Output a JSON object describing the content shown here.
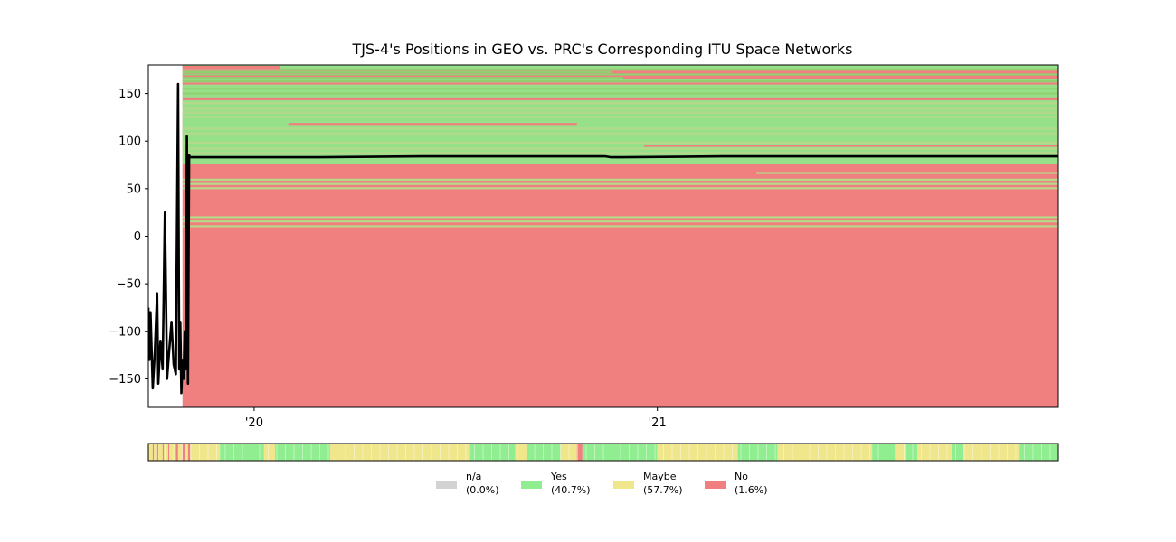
{
  "chart_data": {
    "type": "line",
    "title": "TJS-4's Positions in GEO vs. PRC's Corresponding ITU Space Networks",
    "xlabel": "",
    "ylabel": "",
    "x_range": [
      "2019-09-27",
      "2021-12-31"
    ],
    "x_ticks": [
      {
        "value": "2020-01-01",
        "label": "'20"
      },
      {
        "value": "2021-01-01",
        "label": "'21"
      }
    ],
    "ylim": [
      -180,
      180
    ],
    "y_ticks": [
      {
        "value": 150,
        "label": "150"
      },
      {
        "value": 100,
        "label": "100"
      },
      {
        "value": 50,
        "label": "50"
      },
      {
        "value": 0,
        "label": "0"
      },
      {
        "value": -50,
        "label": "−50"
      },
      {
        "value": -100,
        "label": "−100"
      },
      {
        "value": -150,
        "label": "−150"
      }
    ],
    "grid": false,
    "background": {
      "color": "#f08080",
      "start": "2019-10-28"
    },
    "band_start": "2019-10-28",
    "green_bands": [
      {
        "lo": 174,
        "hi": 180
      },
      {
        "lo": 146,
        "hi": 165
      },
      {
        "lo": 76,
        "hi": 143
      }
    ],
    "itu_network_lines": [
      {
        "lon": 178,
        "start": "2019-10-28",
        "end": "2020-01-25",
        "color": "#f08080"
      },
      {
        "lon": 176.5,
        "start": "2019-10-28",
        "end": "2020-01-25",
        "color": "#f08080"
      },
      {
        "lon": 175.5,
        "start": "2020-01-25",
        "end": "2021-12-31",
        "color": "#90d070"
      },
      {
        "lon": 172.5,
        "start": "2019-10-28",
        "end": "2020-11-20",
        "color": "#90d070"
      },
      {
        "lon": 172.5,
        "start": "2020-11-20",
        "end": "2021-12-31",
        "color": "#f08080"
      },
      {
        "lon": 170,
        "start": "2019-10-28",
        "end": "2021-12-31",
        "color": "#90d070"
      },
      {
        "lon": 166.5,
        "start": "2019-10-28",
        "end": "2020-12-01",
        "color": "#90d070"
      },
      {
        "lon": 163,
        "start": "2019-10-28",
        "end": "2021-12-31",
        "color": "#90d070"
      },
      {
        "lon": 160.5,
        "start": "2019-10-28",
        "end": "2021-12-31",
        "color": "#f08080"
      },
      {
        "lon": 155,
        "start": "2019-10-28",
        "end": "2021-12-31",
        "color": "#90d070"
      },
      {
        "lon": 150,
        "start": "2019-10-28",
        "end": "2021-12-31",
        "color": "#90d070"
      },
      {
        "lon": 140,
        "start": "2019-10-28",
        "end": "2021-12-31",
        "color": "#b5d98a"
      },
      {
        "lon": 134,
        "start": "2019-10-28",
        "end": "2021-12-31",
        "color": "#b5d98a"
      },
      {
        "lon": 130,
        "start": "2019-10-28",
        "end": "2021-12-31",
        "color": "#b5d98a"
      },
      {
        "lon": 125.5,
        "start": "2019-10-28",
        "end": "2021-12-31",
        "color": "#b5d98a"
      },
      {
        "lon": 118,
        "start": "2020-02-01",
        "end": "2020-10-20",
        "color": "#f08080"
      },
      {
        "lon": 113,
        "start": "2019-10-28",
        "end": "2021-12-31",
        "color": "#b5d98a"
      },
      {
        "lon": 108,
        "start": "2019-10-28",
        "end": "2021-12-31",
        "color": "#b5d98a"
      },
      {
        "lon": 98.5,
        "start": "2019-10-28",
        "end": "2021-12-31",
        "color": "#b5d98a"
      },
      {
        "lon": 95,
        "start": "2020-12-20",
        "end": "2021-12-31",
        "color": "#f08080"
      },
      {
        "lon": 92,
        "start": "2019-10-28",
        "end": "2021-12-31",
        "color": "#b5d98a"
      },
      {
        "lon": 87.5,
        "start": "2019-10-28",
        "end": "2021-12-31",
        "color": "#b5d98a"
      },
      {
        "lon": 66.5,
        "start": "2021-04-01",
        "end": "2021-12-31",
        "color": "#b5d98a"
      },
      {
        "lon": 59.5,
        "start": "2019-10-28",
        "end": "2021-12-31",
        "color": "#b5d98a"
      },
      {
        "lon": 55,
        "start": "2019-10-28",
        "end": "2021-12-31",
        "color": "#b5d98a"
      },
      {
        "lon": 50.5,
        "start": "2019-10-28",
        "end": "2021-12-31",
        "color": "#b5d98a"
      },
      {
        "lon": 20,
        "start": "2019-10-28",
        "end": "2021-12-31",
        "color": "#b5d98a"
      },
      {
        "lon": 15.5,
        "start": "2019-10-28",
        "end": "2021-12-31",
        "color": "#b5d98a"
      },
      {
        "lon": 10.5,
        "start": "2019-10-28",
        "end": "2021-12-31",
        "color": "#b5d98a"
      }
    ],
    "series": [
      {
        "color": "#000000",
        "x": [
          "2019-09-27",
          "2019-09-28",
          "2019-09-29",
          "2019-10-01",
          "2019-10-03",
          "2019-10-05",
          "2019-10-06",
          "2019-10-08",
          "2019-10-10",
          "2019-10-12",
          "2019-10-14",
          "2019-10-16",
          "2019-10-18",
          "2019-10-20",
          "2019-10-22",
          "2019-10-24",
          "2019-10-25",
          "2019-10-26",
          "2019-10-27",
          "2019-10-28",
          "2019-10-29",
          "2019-10-30",
          "2019-10-31",
          "2019-11-01",
          "2019-11-02",
          "2019-11-03",
          "2019-11-04",
          "2019-11-05",
          "2019-11-06",
          "2019-11-07",
          "2019-11-08",
          "2019-11-09",
          "2019-11-10",
          "2019-11-12",
          "2019-12-01",
          "2020-03-01",
          "2020-06-01",
          "2020-09-01",
          "2020-11-15",
          "2020-11-20",
          "2020-12-01",
          "2021-03-01",
          "2021-06-01",
          "2021-09-01",
          "2021-12-31"
        ],
        "y": [
          -75,
          -130,
          -80,
          -160,
          -120,
          -60,
          -155,
          -110,
          -140,
          25,
          -150,
          -120,
          -90,
          -135,
          -145,
          160,
          -140,
          -90,
          -165,
          -130,
          -150,
          -100,
          -140,
          105,
          -155,
          85,
          83,
          83,
          83,
          83,
          83,
          83,
          83,
          83,
          83,
          83,
          84,
          84,
          84,
          83,
          83,
          84,
          84,
          84,
          84
        ]
      }
    ],
    "status_strip": {
      "segments": [
        {
          "start": "2019-09-27",
          "end": "2019-10-01",
          "status": "Maybe"
        },
        {
          "start": "2019-10-01",
          "end": "2019-10-02",
          "status": "No"
        },
        {
          "start": "2019-10-02",
          "end": "2019-10-05",
          "status": "Maybe"
        },
        {
          "start": "2019-10-05",
          "end": "2019-10-06",
          "status": "No"
        },
        {
          "start": "2019-10-06",
          "end": "2019-10-10",
          "status": "Maybe"
        },
        {
          "start": "2019-10-10",
          "end": "2019-10-11",
          "status": "No"
        },
        {
          "start": "2019-10-11",
          "end": "2019-10-15",
          "status": "Maybe"
        },
        {
          "start": "2019-10-15",
          "end": "2019-10-16",
          "status": "No"
        },
        {
          "start": "2019-10-16",
          "end": "2019-10-22",
          "status": "Maybe"
        },
        {
          "start": "2019-10-22",
          "end": "2019-10-24",
          "status": "No"
        },
        {
          "start": "2019-10-24",
          "end": "2019-10-28",
          "status": "Maybe"
        },
        {
          "start": "2019-10-28",
          "end": "2019-10-30",
          "status": "No"
        },
        {
          "start": "2019-10-30",
          "end": "2019-11-02",
          "status": "Maybe"
        },
        {
          "start": "2019-11-02",
          "end": "2019-11-04",
          "status": "No"
        },
        {
          "start": "2019-11-04",
          "end": "2019-12-01",
          "status": "Maybe"
        },
        {
          "start": "2019-12-01",
          "end": "2020-01-10",
          "status": "Yes"
        },
        {
          "start": "2020-01-10",
          "end": "2020-01-20",
          "status": "Maybe"
        },
        {
          "start": "2020-01-20",
          "end": "2020-03-10",
          "status": "Yes"
        },
        {
          "start": "2020-03-10",
          "end": "2020-07-15",
          "status": "Maybe"
        },
        {
          "start": "2020-07-15",
          "end": "2020-08-25",
          "status": "Yes"
        },
        {
          "start": "2020-08-25",
          "end": "2020-09-05",
          "status": "Maybe"
        },
        {
          "start": "2020-09-05",
          "end": "2020-10-05",
          "status": "Yes"
        },
        {
          "start": "2020-10-05",
          "end": "2020-10-20",
          "status": "Maybe"
        },
        {
          "start": "2020-10-20",
          "end": "2020-10-25",
          "status": "No"
        },
        {
          "start": "2020-10-25",
          "end": "2021-01-01",
          "status": "Yes"
        },
        {
          "start": "2021-01-01",
          "end": "2021-03-15",
          "status": "Maybe"
        },
        {
          "start": "2021-03-15",
          "end": "2021-04-20",
          "status": "Yes"
        },
        {
          "start": "2021-04-20",
          "end": "2021-07-15",
          "status": "Maybe"
        },
        {
          "start": "2021-07-15",
          "end": "2021-08-05",
          "status": "Yes"
        },
        {
          "start": "2021-08-05",
          "end": "2021-08-15",
          "status": "Maybe"
        },
        {
          "start": "2021-08-15",
          "end": "2021-08-25",
          "status": "Yes"
        },
        {
          "start": "2021-08-25",
          "end": "2021-09-25",
          "status": "Maybe"
        },
        {
          "start": "2021-09-25",
          "end": "2021-10-05",
          "status": "Yes"
        },
        {
          "start": "2021-10-05",
          "end": "2021-11-25",
          "status": "Maybe"
        },
        {
          "start": "2021-11-25",
          "end": "2021-12-31",
          "status": "Yes"
        }
      ]
    },
    "legend": {
      "placement": "bottom-center",
      "entries": [
        {
          "name": "n/a",
          "pct": "(0.0%)",
          "color": "#d3d3d3"
        },
        {
          "name": "Yes",
          "pct": "(40.7%)",
          "color": "#90ee90"
        },
        {
          "name": "Maybe",
          "pct": "(57.7%)",
          "color": "#f0e68c"
        },
        {
          "name": "No",
          "pct": "(1.6%)",
          "color": "#f08080"
        }
      ]
    }
  }
}
